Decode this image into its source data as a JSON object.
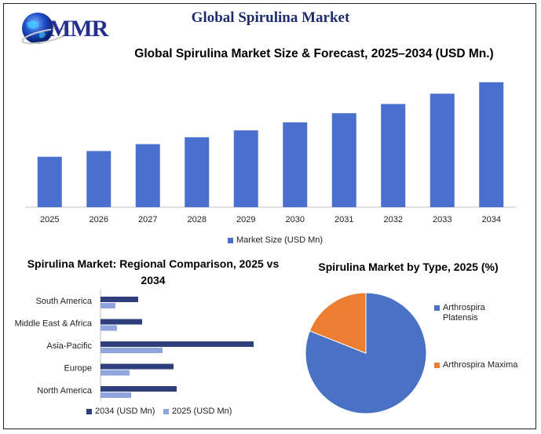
{
  "header": {
    "title": "Global Spirulina Market",
    "logo_text": "MMR"
  },
  "colors": {
    "bar_blue": "#4a6fcf",
    "dark_navy": "#2f3f7e",
    "light_blue": "#8ea5de",
    "pie_blue": "#4a72c4",
    "pie_orange": "#ed7d31",
    "title_navy": "#1f2d6d"
  },
  "chart_data": [
    {
      "type": "bar",
      "title": "Global Spirulina Market Size & Forecast, 2025–2034 (USD Mn.)",
      "categories": [
        "2025",
        "2026",
        "2027",
        "2028",
        "2029",
        "2030",
        "2031",
        "2032",
        "2033",
        "2034"
      ],
      "series": [
        {
          "name": "Market Size (USD Mn)",
          "values": [
            44,
            49,
            55,
            61,
            67,
            74,
            82,
            90,
            99,
            109
          ]
        }
      ],
      "ylim": [
        0,
        115
      ],
      "grid": false,
      "legend": "bottom"
    },
    {
      "type": "bar",
      "orientation": "horizontal",
      "title": "Spirulina Market: Regional Comparison, 2025 vs 2034",
      "categories": [
        "South America",
        "Middle East & Africa",
        "Asia-Pacific",
        "Europe",
        "North America"
      ],
      "series": [
        {
          "name": "2034 (USD Mn)",
          "values": [
            48,
            53,
            195,
            93,
            97
          ]
        },
        {
          "name": "2025 (USD Mn)",
          "values": [
            19,
            21,
            79,
            37,
            39
          ]
        }
      ],
      "xlim": [
        0,
        200
      ],
      "grid": false,
      "legend": "bottom"
    },
    {
      "type": "pie",
      "title": "Spirulina Market by Type, 2025 (%)",
      "categories": [
        "Arthrospira Platensis",
        "Arthrospira Maxima"
      ],
      "values": [
        81,
        19
      ],
      "legend": "right"
    }
  ]
}
